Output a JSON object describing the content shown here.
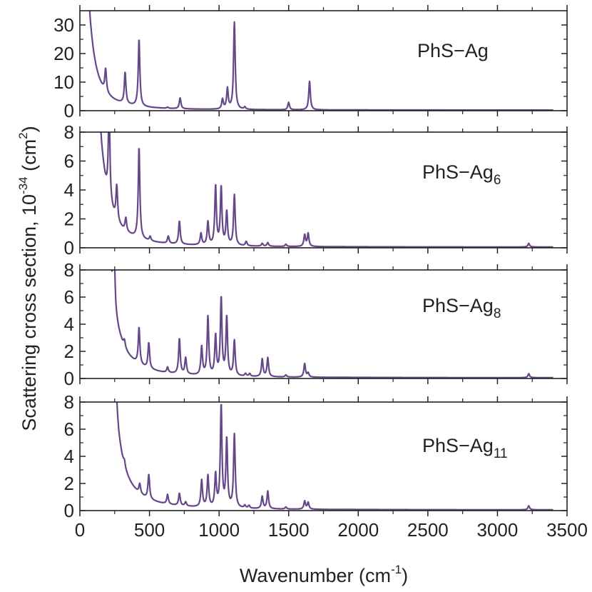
{
  "chart_data": [
    {
      "type": "line",
      "panel_id": "panel-1",
      "label": "PhS−Ag",
      "label_subscript": "",
      "ylim": [
        0,
        35
      ],
      "yticks": [
        0,
        10,
        20,
        30
      ],
      "xlim": [
        0,
        3500
      ],
      "series": [
        {
          "color": "#65478a",
          "baseline": 0.2,
          "tail": {
            "center": 0,
            "amp": 120,
            "width": 45
          },
          "peaks": [
            {
              "x": 185,
              "y": 8.0
            },
            {
              "x": 325,
              "y": 11.0
            },
            {
              "x": 425,
              "y": 23.5
            },
            {
              "x": 630,
              "y": 0.4
            },
            {
              "x": 720,
              "y": 3.8
            },
            {
              "x": 1025,
              "y": 3.5
            },
            {
              "x": 1060,
              "y": 7.2
            },
            {
              "x": 1110,
              "y": 30.5
            },
            {
              "x": 1185,
              "y": 0.8
            },
            {
              "x": 1500,
              "y": 2.6
            },
            {
              "x": 1650,
              "y": 10.0
            }
          ]
        }
      ]
    },
    {
      "type": "line",
      "panel_id": "panel-2",
      "label": "PhS−Ag",
      "label_subscript": "6",
      "ylim": [
        0,
        8
      ],
      "yticks": [
        0,
        2,
        4,
        6,
        8
      ],
      "xlim": [
        0,
        3500
      ],
      "series": [
        {
          "color": "#65478a",
          "baseline": 0.05,
          "tail": {
            "center": 60,
            "amp": 40,
            "width": 45
          },
          "peaks": [
            {
              "x": 210,
              "y": 6.4
            },
            {
              "x": 265,
              "y": 2.4
            },
            {
              "x": 330,
              "y": 0.9
            },
            {
              "x": 425,
              "y": 6.3
            },
            {
              "x": 505,
              "y": 0.3
            },
            {
              "x": 635,
              "y": 0.5
            },
            {
              "x": 715,
              "y": 1.6
            },
            {
              "x": 870,
              "y": 0.8
            },
            {
              "x": 920,
              "y": 1.6
            },
            {
              "x": 975,
              "y": 4.1
            },
            {
              "x": 1015,
              "y": 4.0
            },
            {
              "x": 1055,
              "y": 2.3
            },
            {
              "x": 1110,
              "y": 3.5
            },
            {
              "x": 1195,
              "y": 0.3
            },
            {
              "x": 1310,
              "y": 0.2
            },
            {
              "x": 1350,
              "y": 0.25
            },
            {
              "x": 1480,
              "y": 0.15
            },
            {
              "x": 1615,
              "y": 0.8
            },
            {
              "x": 1640,
              "y": 0.9
            },
            {
              "x": 3225,
              "y": 0.25
            }
          ]
        }
      ]
    },
    {
      "type": "line",
      "panel_id": "panel-3",
      "label": "PhS−Ag",
      "label_subscript": "8",
      "ylim": [
        0,
        8
      ],
      "yticks": [
        0,
        2,
        4,
        6,
        8
      ],
      "xlim": [
        0,
        3500
      ],
      "series": [
        {
          "color": "#65478a",
          "baseline": 0.05,
          "tail": {
            "center": 120,
            "amp": 60,
            "width": 40
          },
          "peaks": [
            {
              "x": 245,
              "y": 4.8
            },
            {
              "x": 320,
              "y": 0.5
            },
            {
              "x": 425,
              "y": 2.7
            },
            {
              "x": 495,
              "y": 1.9
            },
            {
              "x": 630,
              "y": 0.4
            },
            {
              "x": 715,
              "y": 2.6
            },
            {
              "x": 760,
              "y": 1.2
            },
            {
              "x": 875,
              "y": 2.1
            },
            {
              "x": 920,
              "y": 4.3
            },
            {
              "x": 975,
              "y": 2.9
            },
            {
              "x": 1015,
              "y": 5.7
            },
            {
              "x": 1055,
              "y": 4.3
            },
            {
              "x": 1110,
              "y": 2.6
            },
            {
              "x": 1190,
              "y": 0.2
            },
            {
              "x": 1220,
              "y": 0.2
            },
            {
              "x": 1310,
              "y": 1.3
            },
            {
              "x": 1350,
              "y": 1.4
            },
            {
              "x": 1480,
              "y": 0.15
            },
            {
              "x": 1615,
              "y": 1.0
            },
            {
              "x": 1640,
              "y": 0.3
            },
            {
              "x": 3225,
              "y": 0.3
            }
          ]
        }
      ]
    },
    {
      "type": "line",
      "panel_id": "panel-4",
      "label": "PhS−Ag",
      "label_subscript": "11",
      "ylim": [
        0,
        8
      ],
      "yticks": [
        0,
        2,
        4,
        6,
        8
      ],
      "xlim": [
        0,
        3500
      ],
      "series": [
        {
          "color": "#65478a",
          "baseline": 0.05,
          "tail": {
            "center": 150,
            "amp": 80,
            "width": 35
          },
          "peaks": [
            {
              "x": 250,
              "y": 8.5
            },
            {
              "x": 320,
              "y": 0.4
            },
            {
              "x": 430,
              "y": 0.7
            },
            {
              "x": 495,
              "y": 1.8
            },
            {
              "x": 630,
              "y": 0.7
            },
            {
              "x": 715,
              "y": 0.9
            },
            {
              "x": 760,
              "y": 0.3
            },
            {
              "x": 875,
              "y": 2.0
            },
            {
              "x": 920,
              "y": 2.3
            },
            {
              "x": 975,
              "y": 2.4
            },
            {
              "x": 1015,
              "y": 7.5
            },
            {
              "x": 1055,
              "y": 5.0
            },
            {
              "x": 1110,
              "y": 5.4
            },
            {
              "x": 1185,
              "y": 0.2
            },
            {
              "x": 1215,
              "y": 0.2
            },
            {
              "x": 1310,
              "y": 0.9
            },
            {
              "x": 1350,
              "y": 1.3
            },
            {
              "x": 1480,
              "y": 0.15
            },
            {
              "x": 1615,
              "y": 0.6
            },
            {
              "x": 1640,
              "y": 0.5
            },
            {
              "x": 3225,
              "y": 0.3
            }
          ]
        }
      ]
    }
  ],
  "shared_axes": {
    "xticks": [
      0,
      500,
      1000,
      1500,
      2000,
      2500,
      3000,
      3500
    ],
    "minor_xticks": [
      250,
      750,
      1250,
      1750,
      2250,
      2750,
      3250
    ],
    "xlabel": "Wavenumber (cm",
    "xlabel_sup": "-1",
    "xlabel_end": ")",
    "ylabel_part1": "Scattering cross section, 10",
    "ylabel_sup1": "-34",
    "ylabel_part2": " (cm",
    "ylabel_sup2": "2",
    "ylabel_part3": ")"
  }
}
